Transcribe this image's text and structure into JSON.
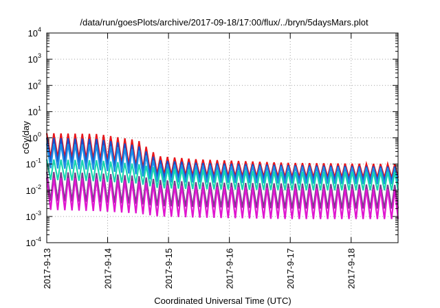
{
  "chart_data": {
    "type": "line",
    "title": "/data/run/goesPlots/archive/2017-09-18/17:00/flux/../bryn/5daysMars.plot",
    "xlabel": "Coordinated Universal Time (UTC)",
    "ylabel": "cGy/day",
    "yscale": "log",
    "ylim": [
      0.0001,
      10000
    ],
    "xlim": [
      "2017-09-13",
      "2017-09-18T18:30"
    ],
    "grid": "dotted",
    "legend": "none",
    "x_ticks": [
      "2017-9-13",
      "2017-9-14",
      "2017-9-15",
      "2017-9-16",
      "2017-9-17",
      "2017-9-18"
    ],
    "y_ticks": [
      {
        "base": "10",
        "exp": "-4",
        "value": 0.0001
      },
      {
        "base": "10",
        "exp": "-3",
        "value": 0.001
      },
      {
        "base": "10",
        "exp": "-2",
        "value": 0.01
      },
      {
        "base": "10",
        "exp": "-1",
        "value": 0.1
      },
      {
        "base": "10",
        "exp": "0",
        "value": 1
      },
      {
        "base": "10",
        "exp": "1",
        "value": 10
      },
      {
        "base": "10",
        "exp": "2",
        "value": 100
      },
      {
        "base": "10",
        "exp": "3",
        "value": 1000
      },
      {
        "base": "10",
        "exp": "4",
        "value": 10000
      }
    ],
    "sawtooth_period_hours": 2.8,
    "series": [
      {
        "color": "#e8161b",
        "peak_envelope": [
          [
            0,
            1.5
          ],
          [
            20,
            1.4
          ],
          [
            36,
            0.8
          ],
          [
            44,
            0.2
          ],
          [
            60,
            0.15
          ],
          [
            96,
            0.11
          ],
          [
            138,
            0.1
          ],
          [
            144,
            0.12
          ],
          [
            150,
            0.12
          ]
        ],
        "trough_envelope": [
          [
            0,
            0.18
          ],
          [
            20,
            0.15
          ],
          [
            36,
            0.08
          ],
          [
            44,
            0.04
          ],
          [
            60,
            0.035
          ],
          [
            96,
            0.032
          ],
          [
            138,
            0.03
          ],
          [
            144,
            0.034
          ],
          [
            150,
            0.034
          ]
        ]
      },
      {
        "color": "#1a4ec9",
        "peak_envelope": [
          [
            0,
            1.0
          ],
          [
            20,
            0.9
          ],
          [
            36,
            0.5
          ],
          [
            44,
            0.14
          ],
          [
            60,
            0.11
          ],
          [
            96,
            0.09
          ],
          [
            138,
            0.08
          ],
          [
            144,
            0.1
          ],
          [
            150,
            0.1
          ]
        ],
        "trough_envelope": [
          [
            0,
            0.12
          ],
          [
            20,
            0.1
          ],
          [
            36,
            0.06
          ],
          [
            44,
            0.03
          ],
          [
            60,
            0.028
          ],
          [
            96,
            0.025
          ],
          [
            138,
            0.023
          ],
          [
            144,
            0.026
          ],
          [
            150,
            0.026
          ]
        ]
      },
      {
        "color": "#1e8fe6",
        "peak_envelope": [
          [
            0,
            0.6
          ],
          [
            20,
            0.55
          ],
          [
            36,
            0.35
          ],
          [
            44,
            0.1
          ],
          [
            60,
            0.09
          ],
          [
            96,
            0.08
          ],
          [
            138,
            0.07
          ],
          [
            144,
            0.08
          ],
          [
            150,
            0.08
          ]
        ],
        "trough_envelope": [
          [
            0,
            0.07
          ],
          [
            20,
            0.06
          ],
          [
            36,
            0.04
          ],
          [
            44,
            0.02
          ],
          [
            60,
            0.02
          ],
          [
            96,
            0.018
          ],
          [
            138,
            0.017
          ],
          [
            144,
            0.019
          ],
          [
            150,
            0.019
          ]
        ]
      },
      {
        "color": "#18d6b0",
        "peak_envelope": [
          [
            0,
            0.15
          ],
          [
            20,
            0.14
          ],
          [
            36,
            0.1
          ],
          [
            44,
            0.07
          ],
          [
            60,
            0.06
          ],
          [
            96,
            0.05
          ],
          [
            138,
            0.05
          ],
          [
            144,
            0.055
          ],
          [
            150,
            0.055
          ]
        ],
        "trough_envelope": [
          [
            0,
            0.025
          ],
          [
            20,
            0.022
          ],
          [
            36,
            0.018
          ],
          [
            44,
            0.012
          ],
          [
            60,
            0.011
          ],
          [
            96,
            0.01
          ],
          [
            138,
            0.01
          ],
          [
            144,
            0.011
          ],
          [
            150,
            0.011
          ]
        ]
      },
      {
        "color": "#7a3c8c",
        "peak_envelope": [
          [
            0,
            0.05
          ],
          [
            20,
            0.045
          ],
          [
            36,
            0.035
          ],
          [
            44,
            0.025
          ],
          [
            60,
            0.02
          ],
          [
            96,
            0.018
          ],
          [
            138,
            0.016
          ],
          [
            144,
            0.018
          ],
          [
            150,
            0.018
          ]
        ],
        "trough_envelope": [
          [
            0,
            0.004
          ],
          [
            20,
            0.0035
          ],
          [
            36,
            0.003
          ],
          [
            44,
            0.0025
          ],
          [
            60,
            0.0023
          ],
          [
            96,
            0.002
          ],
          [
            138,
            0.002
          ],
          [
            144,
            0.0022
          ],
          [
            150,
            0.0022
          ]
        ]
      },
      {
        "color": "#e016d0",
        "peak_envelope": [
          [
            0,
            0.03
          ],
          [
            20,
            0.028
          ],
          [
            36,
            0.022
          ],
          [
            44,
            0.016
          ],
          [
            60,
            0.014
          ],
          [
            96,
            0.012
          ],
          [
            138,
            0.011
          ],
          [
            144,
            0.012
          ],
          [
            150,
            0.012
          ]
        ],
        "trough_envelope": [
          [
            0,
            0.0018
          ],
          [
            20,
            0.0016
          ],
          [
            36,
            0.0013
          ],
          [
            44,
            0.001
          ],
          [
            60,
            0.0009
          ],
          [
            96,
            0.0008
          ],
          [
            138,
            0.0008
          ],
          [
            144,
            0.0009
          ],
          [
            150,
            0.0009
          ]
        ]
      }
    ]
  }
}
